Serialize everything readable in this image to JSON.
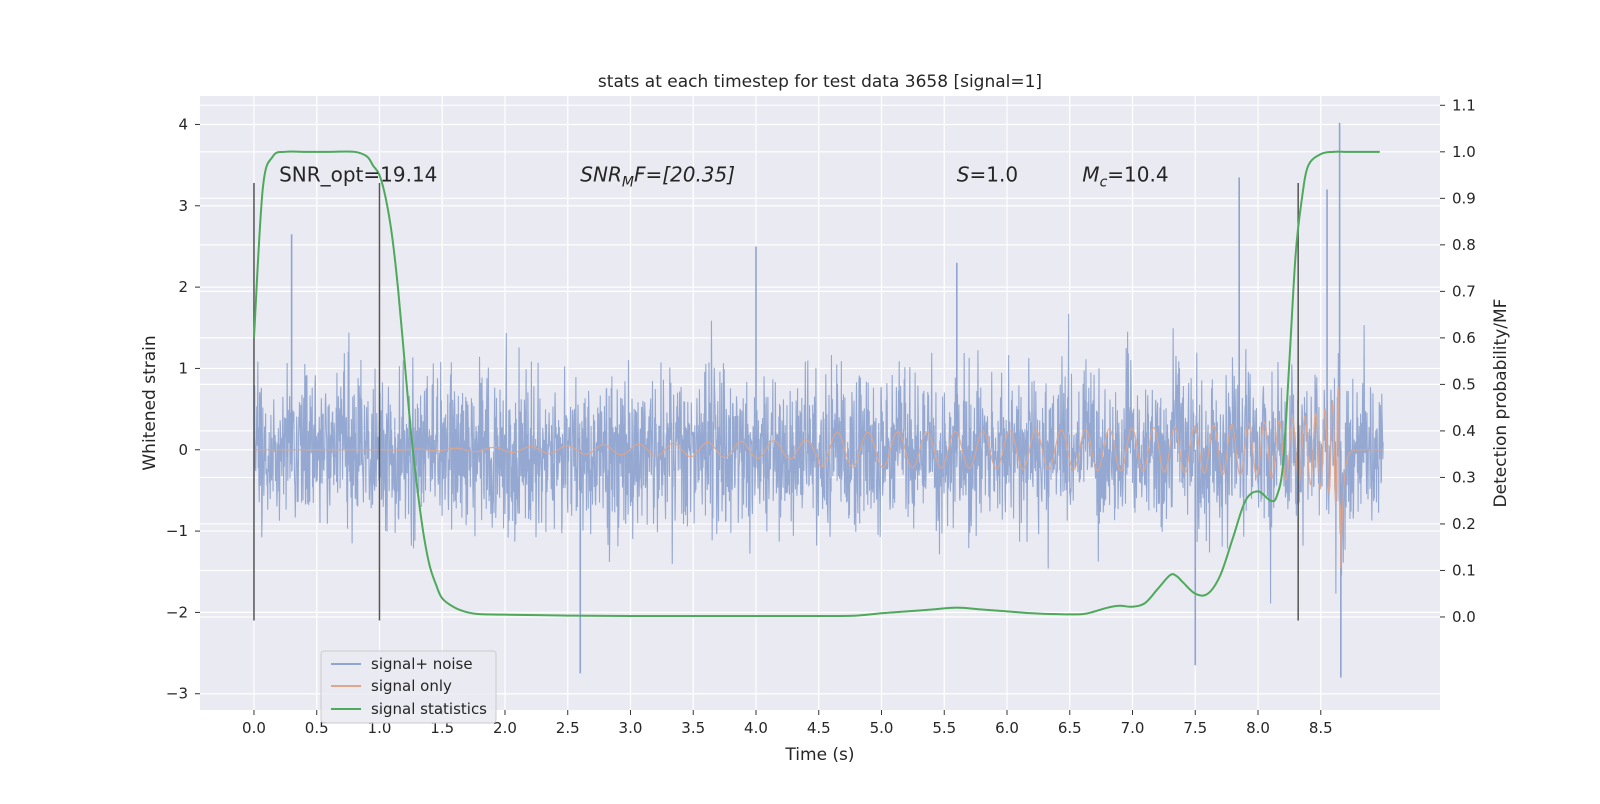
{
  "chart_data": {
    "type": "line",
    "title": "stats at each timestep for test data 3658 [signal=1]",
    "xlabel": "Time (s)",
    "ylabel_left": "Whitened strain",
    "ylabel_right": "Detection probability/MF",
    "xlim": [
      -0.43,
      9.45
    ],
    "ylim_left": [
      -3.2,
      4.35
    ],
    "ylim_right": [
      -0.2,
      1.12
    ],
    "x_ticks": [
      "0.0",
      "0.5",
      "1.0",
      "1.5",
      "2.0",
      "2.5",
      "3.0",
      "3.5",
      "4.0",
      "4.5",
      "5.0",
      "5.5",
      "6.0",
      "6.5",
      "7.0",
      "7.5",
      "8.0",
      "8.5"
    ],
    "y_ticks_left": [
      "−3",
      "−2",
      "−1",
      "0",
      "1",
      "2",
      "3",
      "4"
    ],
    "y_ticks_right": [
      "0.0",
      "0.1",
      "0.2",
      "0.3",
      "0.4",
      "0.5",
      "0.6",
      "0.7",
      "0.8",
      "0.9",
      "1.0",
      "1.1"
    ],
    "grid": true,
    "legend_position": "lower-left",
    "legend": [
      "signal+ noise",
      "signal only",
      "signal statistics"
    ],
    "annotations": [
      {
        "x": 0.2,
        "y": 3.3,
        "prefix": "SNR_opt=19.14",
        "sub": "",
        "suffix": "",
        "italic": false
      },
      {
        "x": 2.6,
        "y": 3.3,
        "prefix": "SNR",
        "sub": "M",
        "suffix": "F=[20.35]",
        "italic": true
      },
      {
        "x": 5.6,
        "y": 3.3,
        "prefix": "S",
        "sub": "",
        "suffix": "=1.0",
        "italic": true
      },
      {
        "x": 6.6,
        "y": 3.3,
        "prefix": "M",
        "sub": "c",
        "suffix": "=10.4",
        "italic": true
      }
    ],
    "vertical_markers": [
      0.0,
      1.0,
      8.32
    ],
    "marker_range": [
      -2.1,
      3.28
    ],
    "series": [
      {
        "name": "signal+ noise",
        "kind": "noise",
        "color": "#8fa4cf",
        "x_range": [
          0.0,
          9.0
        ],
        "typical_envelope": [
          -1.1,
          1.5
        ],
        "notable_peaks": [
          [
            8.65,
            4.02
          ],
          [
            7.85,
            3.35
          ],
          [
            8.55,
            3.2
          ],
          [
            0.3,
            2.65
          ],
          [
            4.0,
            2.5
          ],
          [
            5.6,
            2.3
          ],
          [
            8.66,
            -2.8
          ],
          [
            2.6,
            -2.75
          ],
          [
            7.5,
            -2.65
          ]
        ]
      },
      {
        "name": "signal only",
        "kind": "chirp",
        "color": "#e0a58a",
        "x_range": [
          0.0,
          9.0
        ],
        "merger_time": 8.66,
        "peak_amplitude": 2.6
      },
      {
        "name": "signal statistics",
        "kind": "probability",
        "axis": "right",
        "color": "#4ea95b",
        "x": [
          0.0,
          0.07,
          0.15,
          0.25,
          0.4,
          0.6,
          0.8,
          0.9,
          0.95,
          1.0,
          1.05,
          1.1,
          1.15,
          1.2,
          1.25,
          1.3,
          1.35,
          1.4,
          1.45,
          1.5,
          1.6,
          1.7,
          1.8,
          2.0,
          2.5,
          3.0,
          3.5,
          4.0,
          4.5,
          4.8,
          5.0,
          5.2,
          5.4,
          5.6,
          5.8,
          6.0,
          6.2,
          6.4,
          6.6,
          6.7,
          6.8,
          6.9,
          7.0,
          7.1,
          7.2,
          7.3,
          7.35,
          7.4,
          7.5,
          7.6,
          7.7,
          7.8,
          7.9,
          8.0,
          8.1,
          8.15,
          8.2,
          8.25,
          8.3,
          8.35,
          8.4,
          8.5,
          8.6,
          8.7,
          8.8,
          8.9,
          8.97
        ],
        "values": [
          0.6,
          0.92,
          0.99,
          1.0,
          1.0,
          1.0,
          1.0,
          0.99,
          0.97,
          0.95,
          0.9,
          0.82,
          0.7,
          0.55,
          0.4,
          0.28,
          0.18,
          0.11,
          0.07,
          0.04,
          0.02,
          0.01,
          0.006,
          0.005,
          0.003,
          0.002,
          0.002,
          0.002,
          0.002,
          0.003,
          0.008,
          0.012,
          0.016,
          0.02,
          0.016,
          0.012,
          0.008,
          0.006,
          0.006,
          0.012,
          0.02,
          0.024,
          0.022,
          0.03,
          0.06,
          0.09,
          0.088,
          0.075,
          0.05,
          0.05,
          0.09,
          0.17,
          0.25,
          0.27,
          0.25,
          0.26,
          0.33,
          0.55,
          0.78,
          0.9,
          0.97,
          0.995,
          1.0,
          1.0,
          1.0,
          1.0,
          1.0
        ]
      }
    ]
  }
}
